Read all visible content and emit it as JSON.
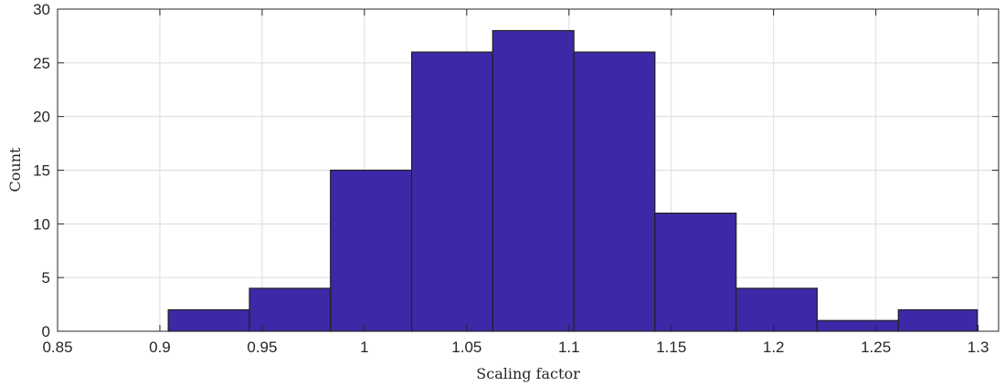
{
  "chart_data": {
    "type": "histogram",
    "title": "",
    "xlabel": "Scaling factor",
    "ylabel": "Count",
    "xlim": [
      0.85,
      1.31
    ],
    "ylim": [
      0,
      30
    ],
    "xticks": [
      "0.85",
      "0.9",
      "0.95",
      "1",
      "1.05",
      "1.1",
      "1.15",
      "1.2",
      "1.25",
      "1.3"
    ],
    "yticks": [
      "0",
      "5",
      "10",
      "15",
      "20",
      "25",
      "30"
    ],
    "grid": true,
    "bin_edges": [
      0.8645,
      0.9041,
      0.9438,
      0.9834,
      1.0231,
      1.0627,
      1.1024,
      1.142,
      1.1817,
      1.2213,
      1.261,
      1.2996
    ],
    "values": [
      0,
      2,
      4,
      15,
      26,
      28,
      26,
      11,
      4,
      1,
      2
    ],
    "bar_color": "#3b29a7",
    "edge_color": "#222222"
  }
}
